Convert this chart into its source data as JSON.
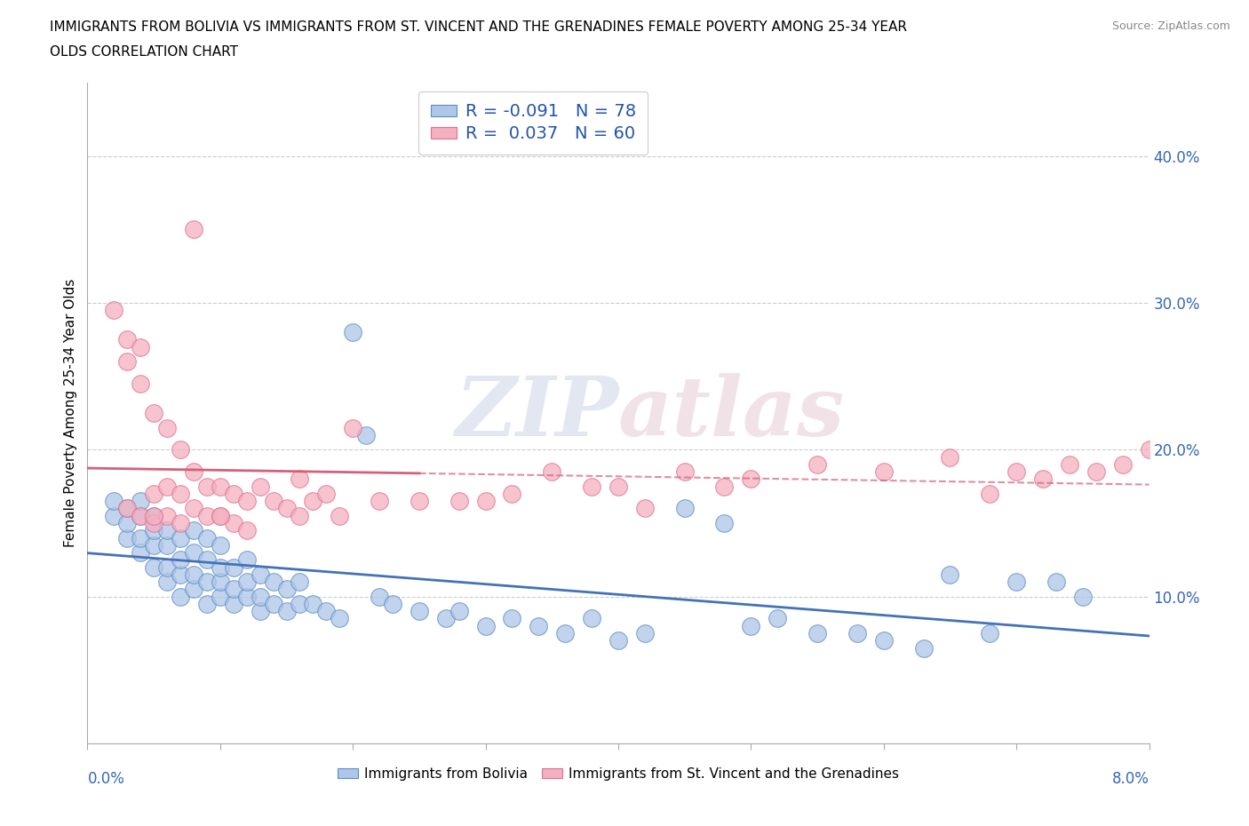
{
  "title_line1": "IMMIGRANTS FROM BOLIVIA VS IMMIGRANTS FROM ST. VINCENT AND THE GRENADINES FEMALE POVERTY AMONG 25-34 YEAR",
  "title_line2": "OLDS CORRELATION CHART",
  "source": "Source: ZipAtlas.com",
  "ylabel": "Female Poverty Among 25-34 Year Olds",
  "right_yticks": [
    "10.0%",
    "20.0%",
    "30.0%",
    "40.0%"
  ],
  "right_ytick_vals": [
    0.1,
    0.2,
    0.3,
    0.4
  ],
  "bolivia_label": "Immigrants from Bolivia",
  "stvincent_label": "Immigrants from St. Vincent and the Grenadines",
  "bolivia_R": -0.091,
  "bolivia_N": 78,
  "stvincent_R": 0.037,
  "stvincent_N": 60,
  "bolivia_color": "#aec6e8",
  "stvincent_color": "#f4afc0",
  "bolivia_edge_color": "#5b8ec4",
  "stvincent_edge_color": "#e07090",
  "bolivia_line_color": "#4472b8",
  "stvincent_line_color": "#d4607a",
  "watermark_color": "#d0d8e8",
  "watermark_pink": "#e8d0d8",
  "xlim": [
    0.0,
    0.08
  ],
  "ylim": [
    0.0,
    0.45
  ],
  "bolivia_x": [
    0.002,
    0.002,
    0.003,
    0.003,
    0.003,
    0.004,
    0.004,
    0.004,
    0.004,
    0.005,
    0.005,
    0.005,
    0.005,
    0.006,
    0.006,
    0.006,
    0.006,
    0.007,
    0.007,
    0.007,
    0.007,
    0.008,
    0.008,
    0.008,
    0.008,
    0.009,
    0.009,
    0.009,
    0.009,
    0.01,
    0.01,
    0.01,
    0.01,
    0.011,
    0.011,
    0.011,
    0.012,
    0.012,
    0.012,
    0.013,
    0.013,
    0.013,
    0.014,
    0.014,
    0.015,
    0.015,
    0.016,
    0.016,
    0.017,
    0.018,
    0.019,
    0.02,
    0.021,
    0.022,
    0.023,
    0.025,
    0.027,
    0.028,
    0.03,
    0.032,
    0.034,
    0.036,
    0.038,
    0.04,
    0.042,
    0.045,
    0.048,
    0.05,
    0.052,
    0.055,
    0.058,
    0.06,
    0.063,
    0.065,
    0.068,
    0.07,
    0.073,
    0.075
  ],
  "bolivia_y": [
    0.155,
    0.165,
    0.14,
    0.15,
    0.16,
    0.13,
    0.14,
    0.155,
    0.165,
    0.12,
    0.135,
    0.145,
    0.155,
    0.11,
    0.12,
    0.135,
    0.145,
    0.1,
    0.115,
    0.125,
    0.14,
    0.105,
    0.115,
    0.13,
    0.145,
    0.095,
    0.11,
    0.125,
    0.14,
    0.1,
    0.11,
    0.12,
    0.135,
    0.095,
    0.105,
    0.12,
    0.1,
    0.11,
    0.125,
    0.09,
    0.1,
    0.115,
    0.095,
    0.11,
    0.09,
    0.105,
    0.095,
    0.11,
    0.095,
    0.09,
    0.085,
    0.28,
    0.21,
    0.1,
    0.095,
    0.09,
    0.085,
    0.09,
    0.08,
    0.085,
    0.08,
    0.075,
    0.085,
    0.07,
    0.075,
    0.16,
    0.15,
    0.08,
    0.085,
    0.075,
    0.075,
    0.07,
    0.065,
    0.115,
    0.075,
    0.11,
    0.11,
    0.1
  ],
  "stvincent_x": [
    0.002,
    0.003,
    0.003,
    0.003,
    0.004,
    0.004,
    0.004,
    0.005,
    0.005,
    0.005,
    0.006,
    0.006,
    0.006,
    0.007,
    0.007,
    0.007,
    0.008,
    0.008,
    0.009,
    0.009,
    0.01,
    0.01,
    0.011,
    0.011,
    0.012,
    0.012,
    0.013,
    0.014,
    0.015,
    0.016,
    0.016,
    0.017,
    0.018,
    0.019,
    0.02,
    0.022,
    0.025,
    0.028,
    0.03,
    0.032,
    0.035,
    0.038,
    0.04,
    0.042,
    0.045,
    0.048,
    0.05,
    0.055,
    0.06,
    0.065,
    0.068,
    0.07,
    0.072,
    0.074,
    0.076,
    0.078,
    0.08,
    0.008,
    0.005,
    0.01
  ],
  "stvincent_y": [
    0.295,
    0.275,
    0.26,
    0.16,
    0.27,
    0.245,
    0.155,
    0.225,
    0.17,
    0.15,
    0.215,
    0.175,
    0.155,
    0.2,
    0.17,
    0.15,
    0.185,
    0.16,
    0.175,
    0.155,
    0.175,
    0.155,
    0.17,
    0.15,
    0.165,
    0.145,
    0.175,
    0.165,
    0.16,
    0.18,
    0.155,
    0.165,
    0.17,
    0.155,
    0.215,
    0.165,
    0.165,
    0.165,
    0.165,
    0.17,
    0.185,
    0.175,
    0.175,
    0.16,
    0.185,
    0.175,
    0.18,
    0.19,
    0.185,
    0.195,
    0.17,
    0.185,
    0.18,
    0.19,
    0.185,
    0.19,
    0.2,
    0.35,
    0.155,
    0.155
  ]
}
